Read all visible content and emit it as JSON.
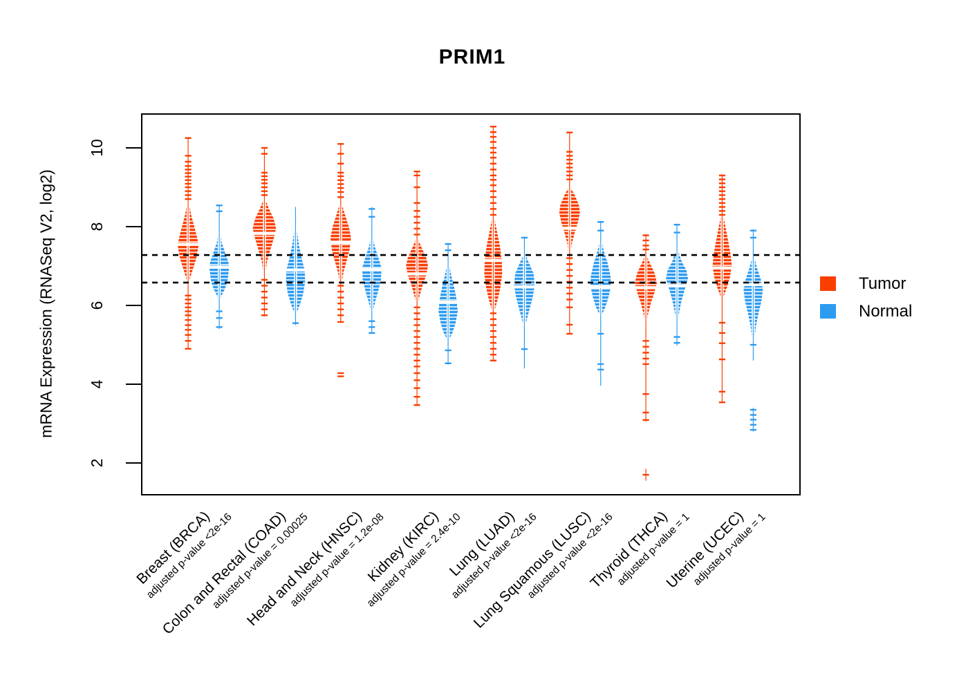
{
  "title": "PRIM1",
  "y_axis": {
    "label": "mRNA Expression (RNASeq V2, log2)",
    "ticks": [
      10,
      8,
      6,
      4,
      2
    ]
  },
  "legend": {
    "items": [
      {
        "label": "Tumor",
        "color": "#FA3E00"
      },
      {
        "label": "Normal",
        "color": "#2D9BF0"
      }
    ]
  },
  "chart_data": {
    "type": "violin",
    "title": "PRIM1",
    "ylabel": "mRNA Expression (RNASeq V2, log2)",
    "ylim": [
      1.2,
      10.9
    ],
    "yticks": [
      2,
      4,
      6,
      8,
      10
    ],
    "grid": false,
    "legend_position": "right",
    "reference_lines": [
      7.28,
      6.58
    ],
    "series": [
      {
        "name": "Tumor",
        "color": "#FA3E00"
      },
      {
        "name": "Normal",
        "color": "#2D9BF0"
      }
    ],
    "categories": [
      "Breast (BRCA)",
      "Colon and Rectal (COAD)",
      "Head and Neck (HNSC)",
      "Kidney (KIRC)",
      "Lung (LUAD)",
      "Lung Squamous (LUSC)",
      "Thyroid (THCA)",
      "Uterine (UCEC)"
    ],
    "groups": [
      {
        "label": "Breast (BRCA)",
        "code": "BRCA",
        "pvalue_label": "adjusted p-value <2e-16",
        "adjusted_p_value": "<2e-16",
        "tumor": {
          "median": 7.55,
          "max_halfwidth": 15,
          "profile": [
            [
              8.63,
              0.06
            ],
            [
              8.3,
              0.3
            ],
            [
              8.0,
              0.6
            ],
            [
              7.7,
              0.9
            ],
            [
              7.5,
              1.0
            ],
            [
              7.2,
              0.8
            ],
            [
              6.95,
              0.5
            ],
            [
              6.7,
              0.2
            ],
            [
              6.51,
              0.07
            ]
          ],
          "stems": [
            [
              4.9,
              10.25
            ]
          ],
          "outliers": [
            10.25,
            9.8,
            9.65,
            9.54,
            9.45,
            9.36,
            9.27,
            9.18,
            9.09,
            9.0,
            8.9,
            8.8,
            8.7,
            6.25,
            6.15,
            6.05,
            5.95,
            5.85,
            5.75,
            5.63,
            5.5,
            5.38,
            5.25,
            5.1,
            4.9
          ]
        },
        "normal": {
          "median": 6.97,
          "max_halfwidth": 14,
          "profile": [
            [
              7.9,
              0.05
            ],
            [
              7.6,
              0.25
            ],
            [
              7.35,
              0.6
            ],
            [
              7.1,
              0.95
            ],
            [
              6.9,
              1.0
            ],
            [
              6.6,
              0.85
            ],
            [
              6.4,
              0.55
            ],
            [
              6.25,
              0.25
            ],
            [
              6.16,
              0.08
            ]
          ],
          "stems": [
            [
              5.4,
              8.55
            ]
          ],
          "outliers": [
            8.54,
            8.39,
            5.85,
            5.68,
            5.45
          ]
        }
      },
      {
        "label": "Colon and Rectal (COAD)",
        "code": "COAD",
        "pvalue_label": "adjusted p-value = 0.00025",
        "adjusted_p_value": "0.00025",
        "tumor": {
          "median": 7.83,
          "max_halfwidth": 17,
          "profile": [
            [
              8.7,
              0.07
            ],
            [
              8.45,
              0.4
            ],
            [
              8.2,
              0.8
            ],
            [
              7.95,
              1.0
            ],
            [
              7.7,
              0.8
            ],
            [
              7.4,
              0.5
            ],
            [
              7.1,
              0.22
            ],
            [
              6.8,
              0.08
            ]
          ],
          "stems": [
            [
              5.72,
              10.0
            ]
          ],
          "outliers": [
            10.0,
            9.85,
            9.37,
            9.28,
            9.19,
            9.1,
            9.0,
            8.9,
            8.8,
            6.65,
            6.5,
            6.35,
            6.2,
            6.05,
            5.9,
            5.75
          ]
        },
        "normal": {
          "median": 6.9,
          "max_halfwidth": 14,
          "profile": [
            [
              8.3,
              0.04
            ],
            [
              7.9,
              0.14
            ],
            [
              7.5,
              0.38
            ],
            [
              7.15,
              0.68
            ],
            [
              6.9,
              0.95
            ],
            [
              6.6,
              1.0
            ],
            [
              6.3,
              0.8
            ],
            [
              6.05,
              0.5
            ],
            [
              5.85,
              0.2
            ],
            [
              5.74,
              0.07
            ]
          ],
          "stems": [
            [
              5.5,
              8.5
            ]
          ],
          "outliers": [
            5.55
          ]
        }
      },
      {
        "label": "Head and Neck (HNSC)",
        "code": "HNSC",
        "pvalue_label": "adjusted p-value = 1.2e-08",
        "adjusted_p_value": "1.2e-08",
        "tumor": {
          "median": 7.6,
          "max_halfwidth": 15,
          "profile": [
            [
              8.6,
              0.07
            ],
            [
              8.3,
              0.42
            ],
            [
              8.0,
              0.78
            ],
            [
              7.72,
              1.0
            ],
            [
              7.4,
              0.85
            ],
            [
              7.1,
              0.55
            ],
            [
              6.85,
              0.28
            ],
            [
              6.56,
              0.1
            ]
          ],
          "stems": [
            [
              5.56,
              10.1
            ]
          ],
          "outliers": [
            10.1,
            9.85,
            9.6,
            9.37,
            9.28,
            9.18,
            9.08,
            8.98,
            8.88,
            8.75,
            6.5,
            6.35,
            6.2,
            6.05,
            5.9,
            5.75,
            5.58,
            4.28,
            4.2
          ]
        },
        "normal": {
          "median": 6.91,
          "max_halfwidth": 14,
          "profile": [
            [
              7.75,
              0.06
            ],
            [
              7.5,
              0.3
            ],
            [
              7.2,
              0.7
            ],
            [
              6.95,
              1.0
            ],
            [
              6.65,
              0.95
            ],
            [
              6.35,
              0.65
            ],
            [
              6.1,
              0.35
            ],
            [
              5.9,
              0.15
            ],
            [
              5.75,
              0.06
            ]
          ],
          "stems": [
            [
              5.3,
              8.5
            ]
          ],
          "outliers": [
            8.45,
            8.25,
            5.6,
            5.45,
            5.3
          ]
        }
      },
      {
        "label": "Kidney (KIRC)",
        "code": "KIRC",
        "pvalue_label": "adjusted p-value = 2.4e-10",
        "adjusted_p_value": "2.4e-10",
        "tumor": {
          "median": 6.8,
          "max_halfwidth": 16,
          "profile": [
            [
              7.7,
              0.07
            ],
            [
              7.45,
              0.45
            ],
            [
              7.2,
              0.85
            ],
            [
              7.0,
              1.0
            ],
            [
              6.75,
              0.82
            ],
            [
              6.5,
              0.5
            ],
            [
              6.2,
              0.2
            ],
            [
              6.04,
              0.07
            ]
          ],
          "stems": [
            [
              3.45,
              9.4
            ]
          ],
          "outliers": [
            9.4,
            9.3,
            9.0,
            8.6,
            8.4,
            8.25,
            8.1,
            7.95,
            7.8,
            5.95,
            5.8,
            5.65,
            5.5,
            5.35,
            5.2,
            5.05,
            4.9,
            4.75,
            4.6,
            4.45,
            4.28,
            4.1,
            3.9,
            3.68,
            3.47
          ]
        },
        "normal": {
          "median": 6.08,
          "max_halfwidth": 14,
          "profile": [
            [
              7.1,
              0.06
            ],
            [
              6.8,
              0.3
            ],
            [
              6.5,
              0.6
            ],
            [
              6.2,
              0.85
            ],
            [
              5.85,
              1.0
            ],
            [
              5.55,
              0.78
            ],
            [
              5.3,
              0.45
            ],
            [
              5.16,
              0.15
            ]
          ],
          "stems": [
            [
              4.5,
              7.56
            ]
          ],
          "outliers": [
            7.56,
            7.4,
            4.86,
            4.53
          ]
        }
      },
      {
        "label": "Lung (LUAD)",
        "code": "LUAD",
        "pvalue_label": "adjusted p-value <2e-16",
        "adjusted_p_value": "<2e-16",
        "tumor": {
          "median": 7.14,
          "max_halfwidth": 13,
          "profile": [
            [
              8.26,
              0.1
            ],
            [
              7.9,
              0.4
            ],
            [
              7.5,
              0.75
            ],
            [
              7.15,
              0.95
            ],
            [
              6.8,
              1.0
            ],
            [
              6.45,
              0.8
            ],
            [
              6.15,
              0.5
            ],
            [
              5.95,
              0.25
            ],
            [
              5.86,
              0.1
            ]
          ],
          "stems": [
            [
              4.58,
              10.54
            ]
          ],
          "outliers": [
            10.54,
            10.4,
            10.28,
            10.15,
            10.0,
            9.88,
            9.75,
            9.6,
            9.45,
            9.3,
            9.19,
            9.05,
            8.9,
            8.75,
            8.6,
            8.45,
            8.3,
            5.8,
            5.65,
            5.5,
            5.35,
            5.2,
            5.05,
            4.9,
            4.75,
            4.6
          ]
        },
        "normal": {
          "median": 6.47,
          "max_halfwidth": 15,
          "profile": [
            [
              7.3,
              0.07
            ],
            [
              7.05,
              0.5
            ],
            [
              6.8,
              0.9
            ],
            [
              6.5,
              1.0
            ],
            [
              6.2,
              0.8
            ],
            [
              5.9,
              0.5
            ],
            [
              5.6,
              0.2
            ],
            [
              5.46,
              0.07
            ]
          ],
          "stems": [
            [
              4.4,
              7.74
            ]
          ],
          "outliers": [
            7.72,
            4.89
          ]
        }
      },
      {
        "label": "Lung Squamous (LUSC)",
        "code": "LUSC",
        "pvalue_label": "adjusted p-value <2e-16",
        "adjusted_p_value": "<2e-16",
        "tumor": {
          "median": 7.96,
          "max_halfwidth": 15,
          "profile": [
            [
              9.0,
              0.08
            ],
            [
              8.8,
              0.5
            ],
            [
              8.55,
              0.9
            ],
            [
              8.35,
              1.0
            ],
            [
              8.1,
              0.8
            ],
            [
              7.85,
              0.5
            ],
            [
              7.55,
              0.2
            ],
            [
              7.26,
              0.08
            ]
          ],
          "stems": [
            [
              5.28,
              10.39
            ]
          ],
          "outliers": [
            10.39,
            9.9,
            9.8,
            9.7,
            9.6,
            9.5,
            9.4,
            9.3,
            9.2,
            7.2,
            7.05,
            6.9,
            6.75,
            6.6,
            6.45,
            6.3,
            6.15,
            5.95,
            5.51,
            5.28
          ]
        },
        "normal": {
          "median": 6.47,
          "max_halfwidth": 15,
          "profile": [
            [
              7.65,
              0.06
            ],
            [
              7.35,
              0.35
            ],
            [
              7.05,
              0.7
            ],
            [
              6.75,
              0.95
            ],
            [
              6.5,
              1.0
            ],
            [
              6.2,
              0.75
            ],
            [
              5.95,
              0.45
            ],
            [
              5.78,
              0.15
            ],
            [
              5.72,
              0.05
            ]
          ],
          "stems": [
            [
              3.96,
              8.14
            ]
          ],
          "outliers": [
            8.12,
            7.9,
            5.28,
            4.51,
            4.37
          ]
        }
      },
      {
        "label": "Thyroid (THCA)",
        "code": "THCA",
        "pvalue_label": "adjusted p-value = 1",
        "adjusted_p_value": "1",
        "tumor": {
          "median": 6.45,
          "max_halfwidth": 16,
          "profile": [
            [
              7.26,
              0.07
            ],
            [
              7.05,
              0.42
            ],
            [
              6.8,
              0.82
            ],
            [
              6.56,
              1.0
            ],
            [
              6.3,
              0.75
            ],
            [
              6.05,
              0.45
            ],
            [
              5.75,
              0.18
            ],
            [
              5.51,
              0.06
            ]
          ],
          "stems": [
            [
              3.05,
              7.78
            ],
            [
              1.55,
              1.85
            ]
          ],
          "outliers": [
            7.78,
            7.65,
            7.52,
            7.42,
            5.1,
            4.95,
            4.8,
            4.65,
            4.51,
            3.75,
            3.28,
            3.09,
            1.7
          ]
        },
        "normal": {
          "median": 6.5,
          "max_halfwidth": 16,
          "profile": [
            [
              7.4,
              0.08
            ],
            [
              7.1,
              0.45
            ],
            [
              6.9,
              0.85
            ],
            [
              6.68,
              1.0
            ],
            [
              6.4,
              0.7
            ],
            [
              6.1,
              0.4
            ],
            [
              5.75,
              0.15
            ],
            [
              5.4,
              0.05
            ]
          ],
          "stems": [
            [
              4.98,
              8.05
            ]
          ],
          "outliers": [
            8.05,
            7.85,
            5.2,
            5.05
          ]
        }
      },
      {
        "label": "Uterine (UCEC)",
        "code": "UCEC",
        "pvalue_label": "adjusted p-value = 1",
        "adjusted_p_value": "1",
        "tumor": {
          "median": 6.95,
          "max_halfwidth": 14,
          "profile": [
            [
              8.3,
              0.1
            ],
            [
              8.0,
              0.35
            ],
            [
              7.65,
              0.62
            ],
            [
              7.3,
              0.88
            ],
            [
              7.0,
              1.0
            ],
            [
              6.7,
              0.8
            ],
            [
              6.45,
              0.5
            ],
            [
              6.25,
              0.2
            ],
            [
              6.16,
              0.07
            ]
          ],
          "stems": [
            [
              3.54,
              9.33
            ]
          ],
          "outliers": [
            9.3,
            9.2,
            9.1,
            9.0,
            8.9,
            8.8,
            8.7,
            8.6,
            8.5,
            8.4,
            8.3,
            5.56,
            5.3,
            5.04,
            4.63,
            3.81,
            3.54
          ]
        },
        "normal": {
          "median": 6.53,
          "max_halfwidth": 14,
          "profile": [
            [
              7.25,
              0.07
            ],
            [
              6.95,
              0.4
            ],
            [
              6.65,
              0.8
            ],
            [
              6.4,
              1.0
            ],
            [
              6.1,
              0.85
            ],
            [
              5.8,
              0.55
            ],
            [
              5.5,
              0.3
            ],
            [
              5.15,
              0.12
            ],
            [
              4.88,
              0.05
            ]
          ],
          "stems": [
            [
              4.6,
              7.93
            ],
            [
              2.8,
              3.4
            ]
          ],
          "outliers": [
            7.9,
            7.72,
            5.0,
            3.35,
            3.22,
            3.1,
            2.97,
            2.84
          ]
        }
      }
    ]
  }
}
